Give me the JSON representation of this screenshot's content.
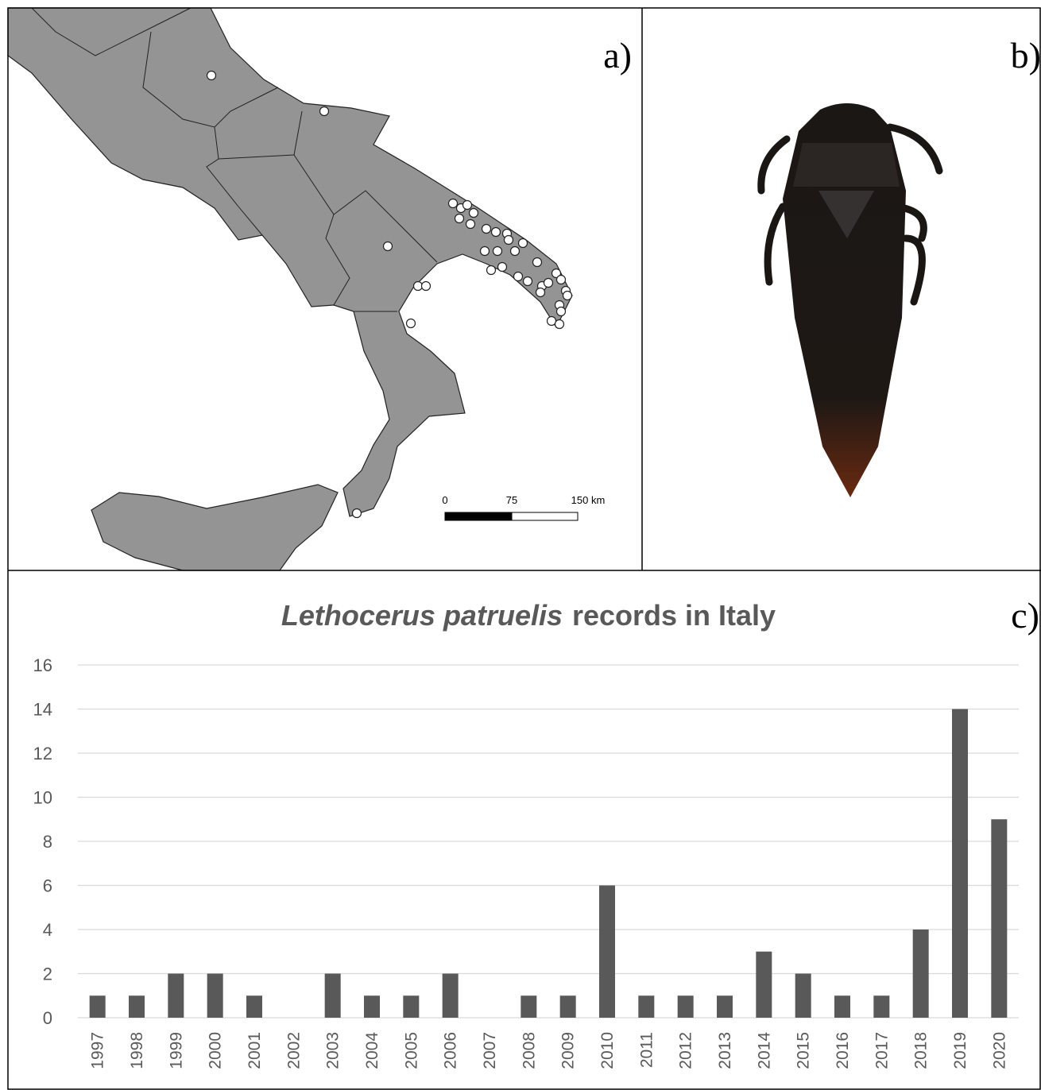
{
  "panels": {
    "a": {
      "label": "a)",
      "scale_bar": [
        "0",
        "75",
        "150 km"
      ]
    },
    "b": {
      "label": "b)"
    }
  },
  "chart_data": {
    "type": "bar",
    "title": [
      "Lethocerus patruelis",
      "records in Italy"
    ],
    "panel_label": "c)",
    "categories": [
      "1997",
      "1998",
      "1999",
      "2000",
      "2001",
      "2002",
      "2003",
      "2004",
      "2005",
      "2006",
      "2007",
      "2008",
      "2009",
      "2010",
      "2011",
      "2012",
      "2013",
      "2014",
      "2015",
      "2016",
      "2017",
      "2018",
      "2019",
      "2020"
    ],
    "values": [
      1,
      1,
      2,
      2,
      1,
      0,
      2,
      1,
      1,
      2,
      0,
      1,
      1,
      6,
      1,
      1,
      1,
      3,
      2,
      1,
      1,
      4,
      14,
      9
    ],
    "color": "#595959",
    "ylim": [
      0,
      16
    ],
    "yticks": [
      0,
      2,
      4,
      6,
      8,
      10,
      12,
      14,
      16
    ],
    "grid": true
  }
}
